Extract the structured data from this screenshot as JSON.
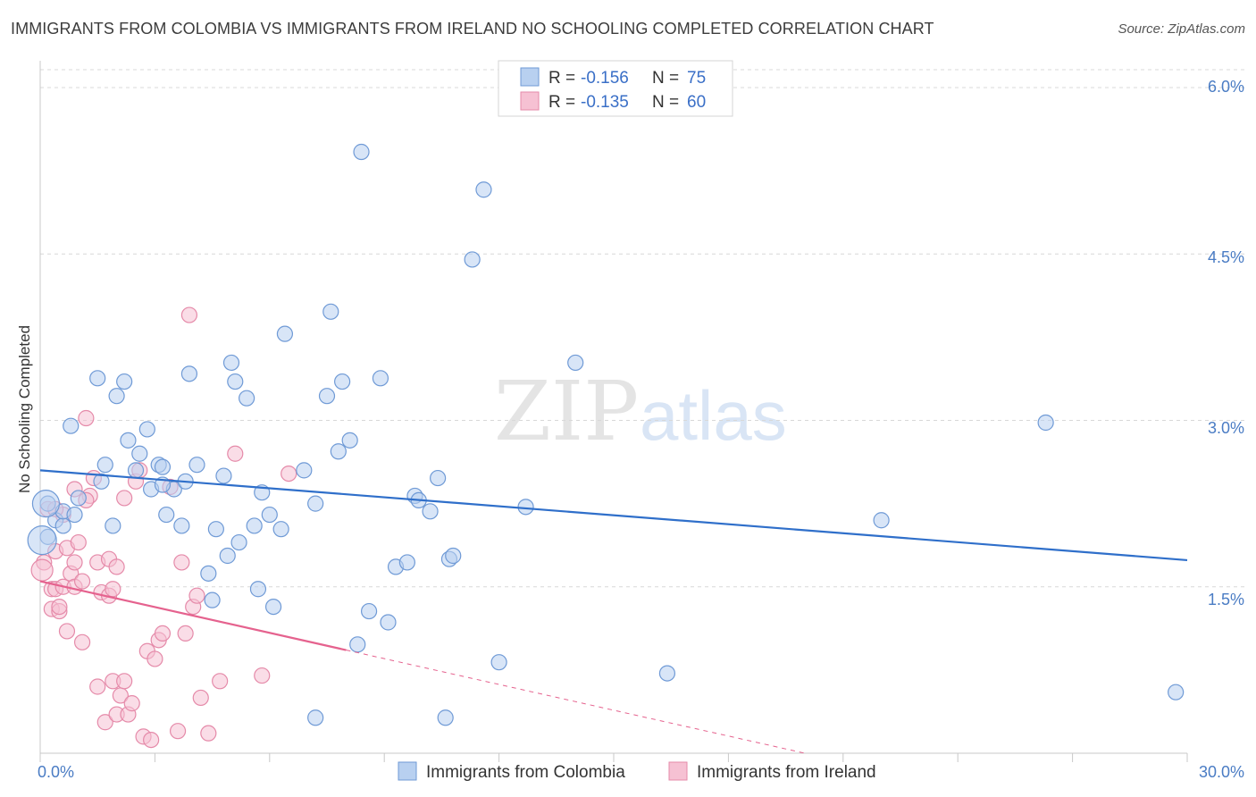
{
  "title": "IMMIGRANTS FROM COLOMBIA VS IMMIGRANTS FROM IRELAND NO SCHOOLING COMPLETED CORRELATION CHART",
  "source": "Source: ZipAtlas.com",
  "watermark": {
    "zip": "ZIP",
    "atlas": "atlas"
  },
  "colors": {
    "colombia_fill": "#b8d0f0",
    "colombia_stroke": "#6f9ad6",
    "colombia_line": "#2f6fca",
    "ireland_fill": "#f6c1d3",
    "ireland_stroke": "#e58aa9",
    "ireland_line": "#e5628e",
    "grid": "#d8d8d8",
    "axis_label": "#4a7cc4"
  },
  "legend": {
    "rows": [
      {
        "r_label": "R = ",
        "r_value": "-0.156",
        "n_label": "N = ",
        "n_value": "75"
      },
      {
        "r_label": "R = ",
        "r_value": "-0.135",
        "n_label": "N = ",
        "n_value": "60"
      }
    ]
  },
  "chart_data": {
    "type": "scatter",
    "title": "IMMIGRANTS FROM COLOMBIA VS IMMIGRANTS FROM IRELAND NO SCHOOLING COMPLETED CORRELATION CHART",
    "xlabel": "",
    "ylabel": "No Schooling Completed",
    "xlim": [
      0,
      30
    ],
    "ylim": [
      0,
      6.2
    ],
    "x_tick_labels": [
      "0.0%",
      "30.0%"
    ],
    "y_ticks": [
      1.5,
      3.0,
      4.5,
      6.0
    ],
    "y_tick_labels": [
      "1.5%",
      "3.0%",
      "4.5%",
      "6.0%"
    ],
    "grid": true,
    "legend_position": "top-center",
    "series": [
      {
        "name": "Immigrants from Colombia",
        "r": -0.156,
        "n": 75,
        "trend": {
          "x": [
            0,
            30
          ],
          "y": [
            2.55,
            1.74
          ]
        },
        "points": [
          [
            0.2,
            2.25
          ],
          [
            0.2,
            1.95
          ],
          [
            0.4,
            2.1
          ],
          [
            0.6,
            2.05
          ],
          [
            0.6,
            2.18
          ],
          [
            0.9,
            2.15
          ],
          [
            0.8,
            2.95
          ],
          [
            1.0,
            2.3
          ],
          [
            1.5,
            3.38
          ],
          [
            1.6,
            2.45
          ],
          [
            1.7,
            2.6
          ],
          [
            1.9,
            2.05
          ],
          [
            2.0,
            3.22
          ],
          [
            2.2,
            3.35
          ],
          [
            2.3,
            2.82
          ],
          [
            2.5,
            2.55
          ],
          [
            2.6,
            2.7
          ],
          [
            2.8,
            2.92
          ],
          [
            2.9,
            2.38
          ],
          [
            3.1,
            2.6
          ],
          [
            3.2,
            2.58
          ],
          [
            3.3,
            2.15
          ],
          [
            3.5,
            2.38
          ],
          [
            3.7,
            2.05
          ],
          [
            3.8,
            2.45
          ],
          [
            3.9,
            3.42
          ],
          [
            4.1,
            2.6
          ],
          [
            4.4,
            1.62
          ],
          [
            4.5,
            1.38
          ],
          [
            4.6,
            2.02
          ],
          [
            4.8,
            2.5
          ],
          [
            4.9,
            1.78
          ],
          [
            5.0,
            3.52
          ],
          [
            5.1,
            3.35
          ],
          [
            5.2,
            1.9
          ],
          [
            5.4,
            3.2
          ],
          [
            5.6,
            2.05
          ],
          [
            5.7,
            1.48
          ],
          [
            5.8,
            2.35
          ],
          [
            6.0,
            2.15
          ],
          [
            6.1,
            1.32
          ],
          [
            6.3,
            2.02
          ],
          [
            6.4,
            3.78
          ],
          [
            6.9,
            2.55
          ],
          [
            7.2,
            2.25
          ],
          [
            7.5,
            3.22
          ],
          [
            7.6,
            3.98
          ],
          [
            7.8,
            2.72
          ],
          [
            7.9,
            3.35
          ],
          [
            8.1,
            2.82
          ],
          [
            8.3,
            0.98
          ],
          [
            8.4,
            5.42
          ],
          [
            8.6,
            1.28
          ],
          [
            8.9,
            3.38
          ],
          [
            9.1,
            1.18
          ],
          [
            9.3,
            1.68
          ],
          [
            9.6,
            1.72
          ],
          [
            9.8,
            2.32
          ],
          [
            9.9,
            2.28
          ],
          [
            10.2,
            2.18
          ],
          [
            10.4,
            2.48
          ],
          [
            10.6,
            0.32
          ],
          [
            10.7,
            1.75
          ],
          [
            10.8,
            1.78
          ],
          [
            11.3,
            4.45
          ],
          [
            11.6,
            5.08
          ],
          [
            12.0,
            0.82
          ],
          [
            12.7,
            2.22
          ],
          [
            14.0,
            3.52
          ],
          [
            16.4,
            0.72
          ],
          [
            22.0,
            2.1
          ],
          [
            26.3,
            2.98
          ],
          [
            29.7,
            0.55
          ],
          [
            7.2,
            0.32
          ],
          [
            3.2,
            2.42
          ]
        ]
      },
      {
        "name": "Immigrants from Ireland",
        "r": -0.135,
        "n": 60,
        "trend": {
          "x": [
            0,
            8
          ],
          "y": [
            1.55,
            0.93
          ]
        },
        "trend_ext": {
          "x": [
            8,
            20
          ],
          "y": [
            0.93,
            0.0
          ]
        },
        "points": [
          [
            0.1,
            1.72
          ],
          [
            0.2,
            2.2
          ],
          [
            0.3,
            1.48
          ],
          [
            0.3,
            1.3
          ],
          [
            0.4,
            1.48
          ],
          [
            0.4,
            1.82
          ],
          [
            0.5,
            1.28
          ],
          [
            0.5,
            1.32
          ],
          [
            0.6,
            2.15
          ],
          [
            0.6,
            1.5
          ],
          [
            0.7,
            1.85
          ],
          [
            0.8,
            1.62
          ],
          [
            0.9,
            1.72
          ],
          [
            0.9,
            1.5
          ],
          [
            1.0,
            1.9
          ],
          [
            1.1,
            1.55
          ],
          [
            1.1,
            1.0
          ],
          [
            1.2,
            3.02
          ],
          [
            1.3,
            2.32
          ],
          [
            1.4,
            2.48
          ],
          [
            1.5,
            1.72
          ],
          [
            1.5,
            0.6
          ],
          [
            1.6,
            1.45
          ],
          [
            1.7,
            0.28
          ],
          [
            1.8,
            1.42
          ],
          [
            1.8,
            1.75
          ],
          [
            1.9,
            1.48
          ],
          [
            1.9,
            0.65
          ],
          [
            2.0,
            0.35
          ],
          [
            2.0,
            1.68
          ],
          [
            2.1,
            0.52
          ],
          [
            2.2,
            0.65
          ],
          [
            2.3,
            0.35
          ],
          [
            2.4,
            0.45
          ],
          [
            2.5,
            2.45
          ],
          [
            2.6,
            2.55
          ],
          [
            2.7,
            0.15
          ],
          [
            2.8,
            0.92
          ],
          [
            2.9,
            0.12
          ],
          [
            3.0,
            0.85
          ],
          [
            3.1,
            1.02
          ],
          [
            3.2,
            1.08
          ],
          [
            3.4,
            2.4
          ],
          [
            3.6,
            0.2
          ],
          [
            3.7,
            1.72
          ],
          [
            3.8,
            1.08
          ],
          [
            3.9,
            3.95
          ],
          [
            4.0,
            1.32
          ],
          [
            4.1,
            1.42
          ],
          [
            4.2,
            0.5
          ],
          [
            4.4,
            0.18
          ],
          [
            4.7,
            0.65
          ],
          [
            5.1,
            2.7
          ],
          [
            5.8,
            0.7
          ],
          [
            6.5,
            2.52
          ],
          [
            0.9,
            2.38
          ],
          [
            2.2,
            2.3
          ],
          [
            0.7,
            1.1
          ],
          [
            1.2,
            2.28
          ],
          [
            0.4,
            2.2
          ]
        ]
      }
    ]
  },
  "bottom_legend": [
    "Immigrants from Colombia",
    "Immigrants from Ireland"
  ]
}
